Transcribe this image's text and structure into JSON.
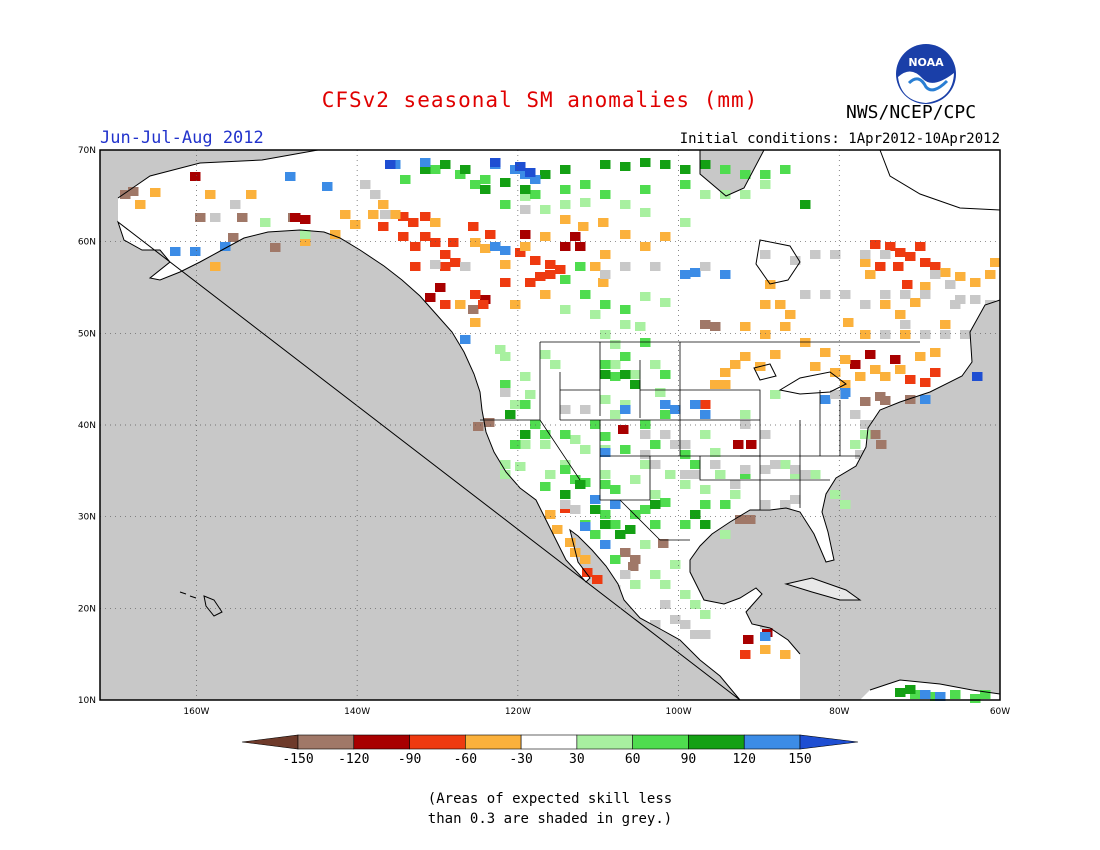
{
  "title": "CFSv2 seasonal SM anomalies (mm)",
  "period": "Jun-Jul-Aug 2012",
  "agency": "NWS/NCEP/CPC",
  "logo_text": "NOAA",
  "initial_conditions": "Initial conditions: 1Apr2012-10Apr2012",
  "note_line1": "(Areas of expected skill less",
  "note_line2": "than 0.3 are shaded in grey.)",
  "map": {
    "lat_labels": [
      "70N",
      "60N",
      "50N",
      "40N",
      "30N",
      "20N",
      "10N"
    ],
    "lon_labels": [
      "160W",
      "140W",
      "120W",
      "100W",
      "80W",
      "60W"
    ],
    "lat_range": [
      10,
      70
    ],
    "lon_range": [
      -172,
      -60
    ],
    "land_color": "#ffffff",
    "ocean_color": "#c8c8c8"
  },
  "legend": {
    "ticks": [
      "-150",
      "-120",
      "-90",
      "-60",
      "-30",
      "30",
      "60",
      "90",
      "120",
      "150"
    ],
    "colors": [
      "#6e3a2a",
      "#a07868",
      "#a80000",
      "#ee3a10",
      "#fbb13c",
      "#ffffff",
      "#a8f0a0",
      "#4fdc4f",
      "#14a014",
      "#3c8ce6",
      "#1e4ed2"
    ]
  }
}
